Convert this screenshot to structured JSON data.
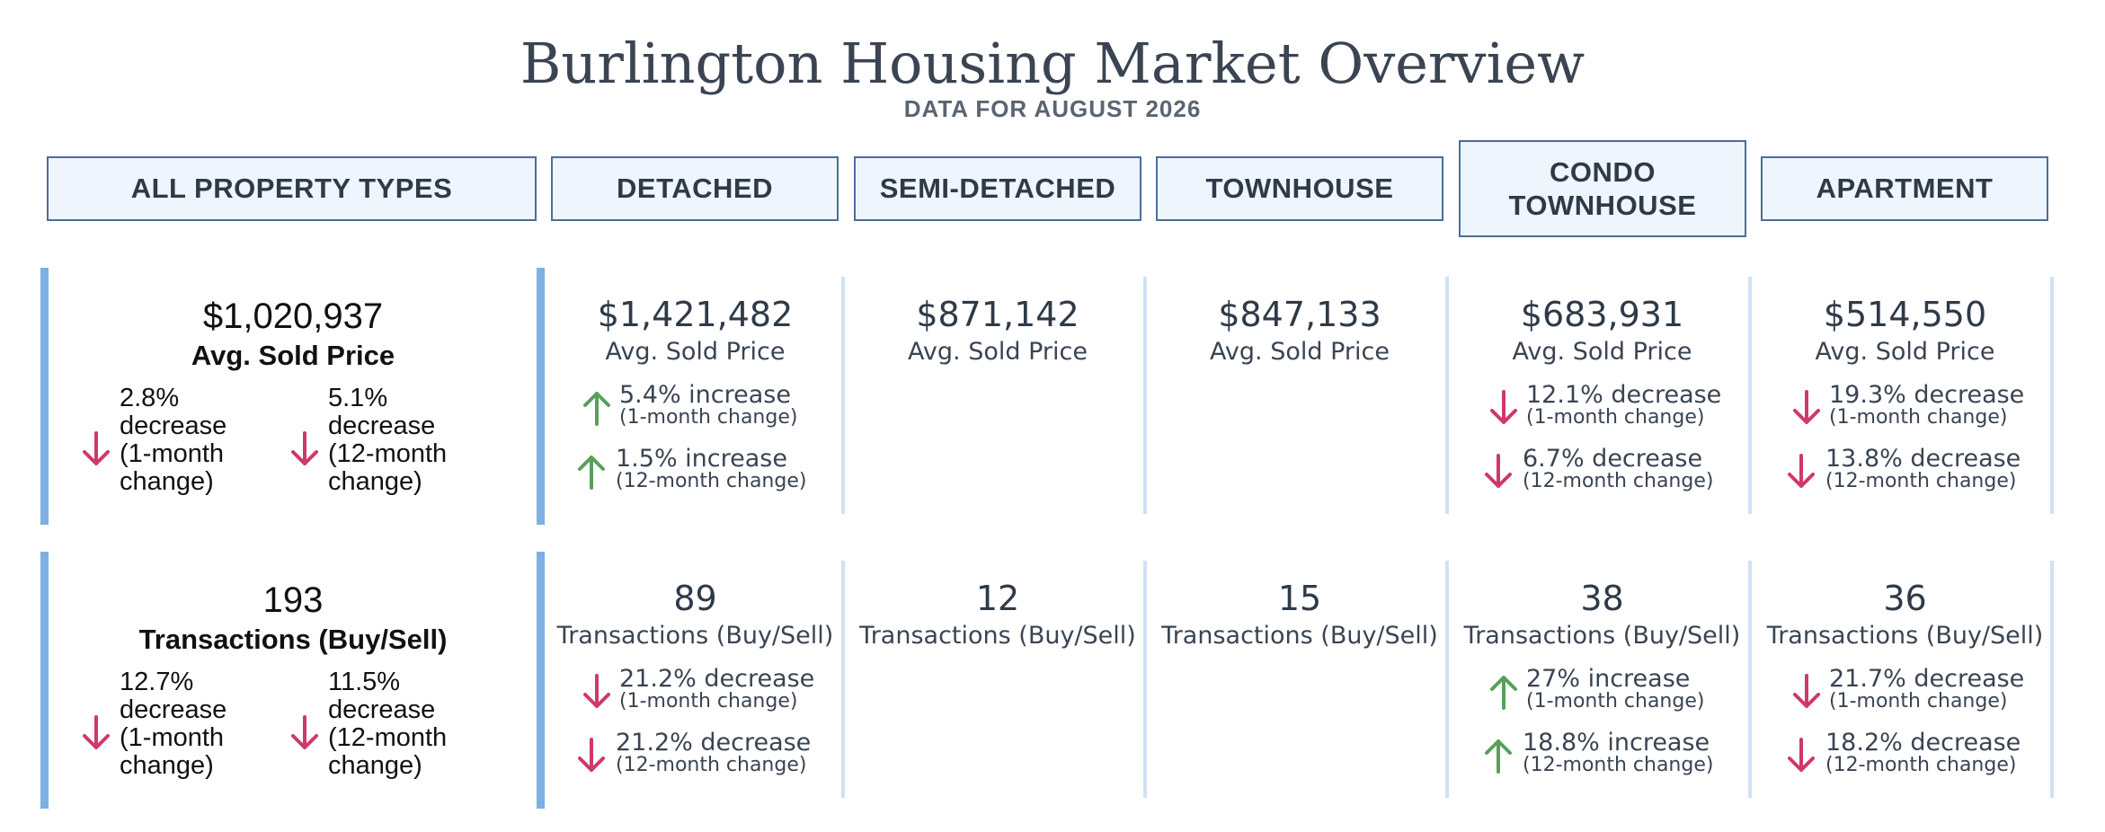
{
  "title": "Burlington Housing Market Overview",
  "subtitle": "DATA FOR AUGUST 2026",
  "colors": {
    "up": "#5aa05a",
    "down": "#d0386a",
    "header_border": "#4a6e99",
    "header_fill": "#eef5fd",
    "accent_bar": "#7eb0e2"
  },
  "headers": [
    {
      "lines": [
        "ALL PROPERTY TYPES"
      ]
    },
    {
      "lines": [
        "DETACHED"
      ]
    },
    {
      "lines": [
        "SEMI-DETACHED"
      ]
    },
    {
      "lines": [
        "TOWNHOUSE"
      ]
    },
    {
      "lines": [
        "CONDO",
        "TOWNHOUSE"
      ]
    },
    {
      "lines": [
        "APARTMENT"
      ]
    }
  ],
  "all_types": {
    "price": {
      "value": "$1,020,937",
      "label": "Avg. Sold Price",
      "changes": [
        {
          "direction": "down",
          "lines": [
            "2.8%",
            "decrease",
            "(1-month",
            "change)"
          ]
        },
        {
          "direction": "down",
          "lines": [
            "5.1%",
            "decrease",
            "(12-month",
            "change)"
          ]
        }
      ]
    },
    "transactions": {
      "value": "193",
      "label": "Transactions (Buy/Sell)",
      "changes": [
        {
          "direction": "down",
          "lines": [
            "12.7%",
            "decrease",
            "(1-month",
            "change)"
          ]
        },
        {
          "direction": "down",
          "lines": [
            "11.5%",
            "decrease",
            "(12-month",
            "change)"
          ]
        }
      ]
    }
  },
  "types": [
    {
      "price": {
        "value": "$1,421,482",
        "label": "Avg. Sold Price",
        "changes": [
          {
            "direction": "up",
            "text": "5.4% increase",
            "period": "(1-month change)"
          },
          {
            "direction": "up",
            "text": "1.5% increase",
            "period": "(12-month change)"
          }
        ]
      },
      "transactions": {
        "value": "89",
        "label": "Transactions (Buy/Sell)",
        "changes": [
          {
            "direction": "down",
            "text": "21.2% decrease",
            "period": "(1-month change)"
          },
          {
            "direction": "down",
            "text": "21.2% decrease",
            "period": "(12-month change)"
          }
        ]
      }
    },
    {
      "price": {
        "value": "$871,142",
        "label": "Avg. Sold Price",
        "changes": []
      },
      "transactions": {
        "value": "12",
        "label": "Transactions (Buy/Sell)",
        "changes": []
      }
    },
    {
      "price": {
        "value": "$847,133",
        "label": "Avg. Sold Price",
        "changes": []
      },
      "transactions": {
        "value": "15",
        "label": "Transactions (Buy/Sell)",
        "changes": []
      }
    },
    {
      "price": {
        "value": "$683,931",
        "label": "Avg. Sold Price",
        "changes": [
          {
            "direction": "down",
            "text": "12.1% decrease",
            "period": "(1-month change)"
          },
          {
            "direction": "down",
            "text": "6.7% decrease",
            "period": "(12-month change)"
          }
        ]
      },
      "transactions": {
        "value": "38",
        "label": "Transactions (Buy/Sell)",
        "changes": [
          {
            "direction": "up",
            "text": "27% increase",
            "period": "(1-month change)"
          },
          {
            "direction": "up",
            "text": "18.8% increase",
            "period": "(12-month change)"
          }
        ]
      }
    },
    {
      "price": {
        "value": "$514,550",
        "label": "Avg. Sold Price",
        "changes": [
          {
            "direction": "down",
            "text": "19.3% decrease",
            "period": "(1-month change)"
          },
          {
            "direction": "down",
            "text": "13.8% decrease",
            "period": "(12-month change)"
          }
        ]
      },
      "transactions": {
        "value": "36",
        "label": "Transactions (Buy/Sell)",
        "changes": [
          {
            "direction": "down",
            "text": "21.7% decrease",
            "period": "(1-month change)"
          },
          {
            "direction": "down",
            "text": "18.2% decrease",
            "period": "(12-month change)"
          }
        ]
      }
    }
  ],
  "chart_data": {
    "type": "table",
    "title": "Burlington Housing Market Overview",
    "subtitle": "DATA FOR AUGUST 2026",
    "categories": [
      "ALL PROPERTY TYPES",
      "DETACHED",
      "SEMI-DETACHED",
      "TOWNHOUSE",
      "CONDO TOWNHOUSE",
      "APARTMENT"
    ],
    "avg_sold_price": [
      1020937,
      1421482,
      871142,
      847133,
      683931,
      514550
    ],
    "transactions": [
      193,
      89,
      12,
      15,
      38,
      36
    ],
    "price_change_1_month_pct": [
      -2.8,
      5.4,
      null,
      null,
      -12.1,
      -19.3
    ],
    "price_change_12_month_pct": [
      -5.1,
      1.5,
      null,
      null,
      -6.7,
      -13.8
    ],
    "transactions_change_1_month_pct": [
      -12.7,
      -21.2,
      null,
      null,
      27,
      -21.7
    ],
    "transactions_change_12_month_pct": [
      -11.5,
      -21.2,
      null,
      null,
      18.8,
      -18.2
    ]
  }
}
